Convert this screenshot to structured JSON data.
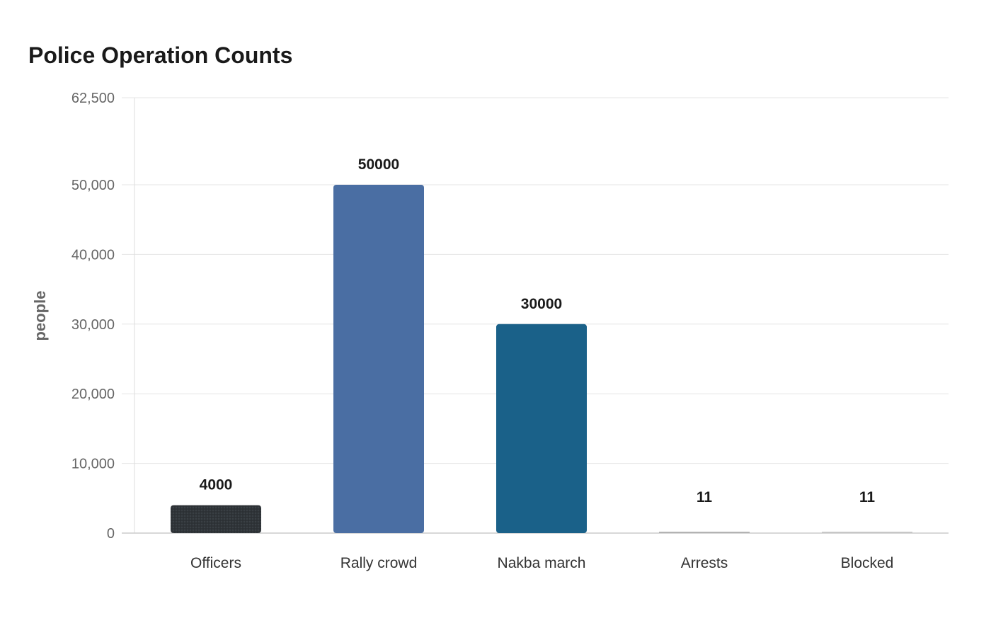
{
  "chart_data": {
    "type": "bar",
    "title": "Police Operation Counts",
    "xlabel": "",
    "ylabel": "people",
    "categories": [
      "Officers",
      "Rally crowd",
      "Nakba march",
      "Arrests",
      "Blocked"
    ],
    "values": [
      4000,
      50000,
      30000,
      11,
      11
    ],
    "value_labels": [
      "4000",
      "50000",
      "30000",
      "11",
      "11"
    ],
    "ylim": [
      0,
      62500
    ],
    "yticks": [
      0,
      10000,
      20000,
      30000,
      40000,
      50000,
      62500
    ],
    "ytick_labels": [
      "0",
      "10,000",
      "20,000",
      "30,000",
      "40,000",
      "50,000",
      "62,500"
    ],
    "colors": [
      "#2f3438",
      "#4a6ea3",
      "#1a6189",
      "#b3b3b3",
      "#c7c7c7"
    ],
    "grid": true,
    "legend": "none"
  }
}
